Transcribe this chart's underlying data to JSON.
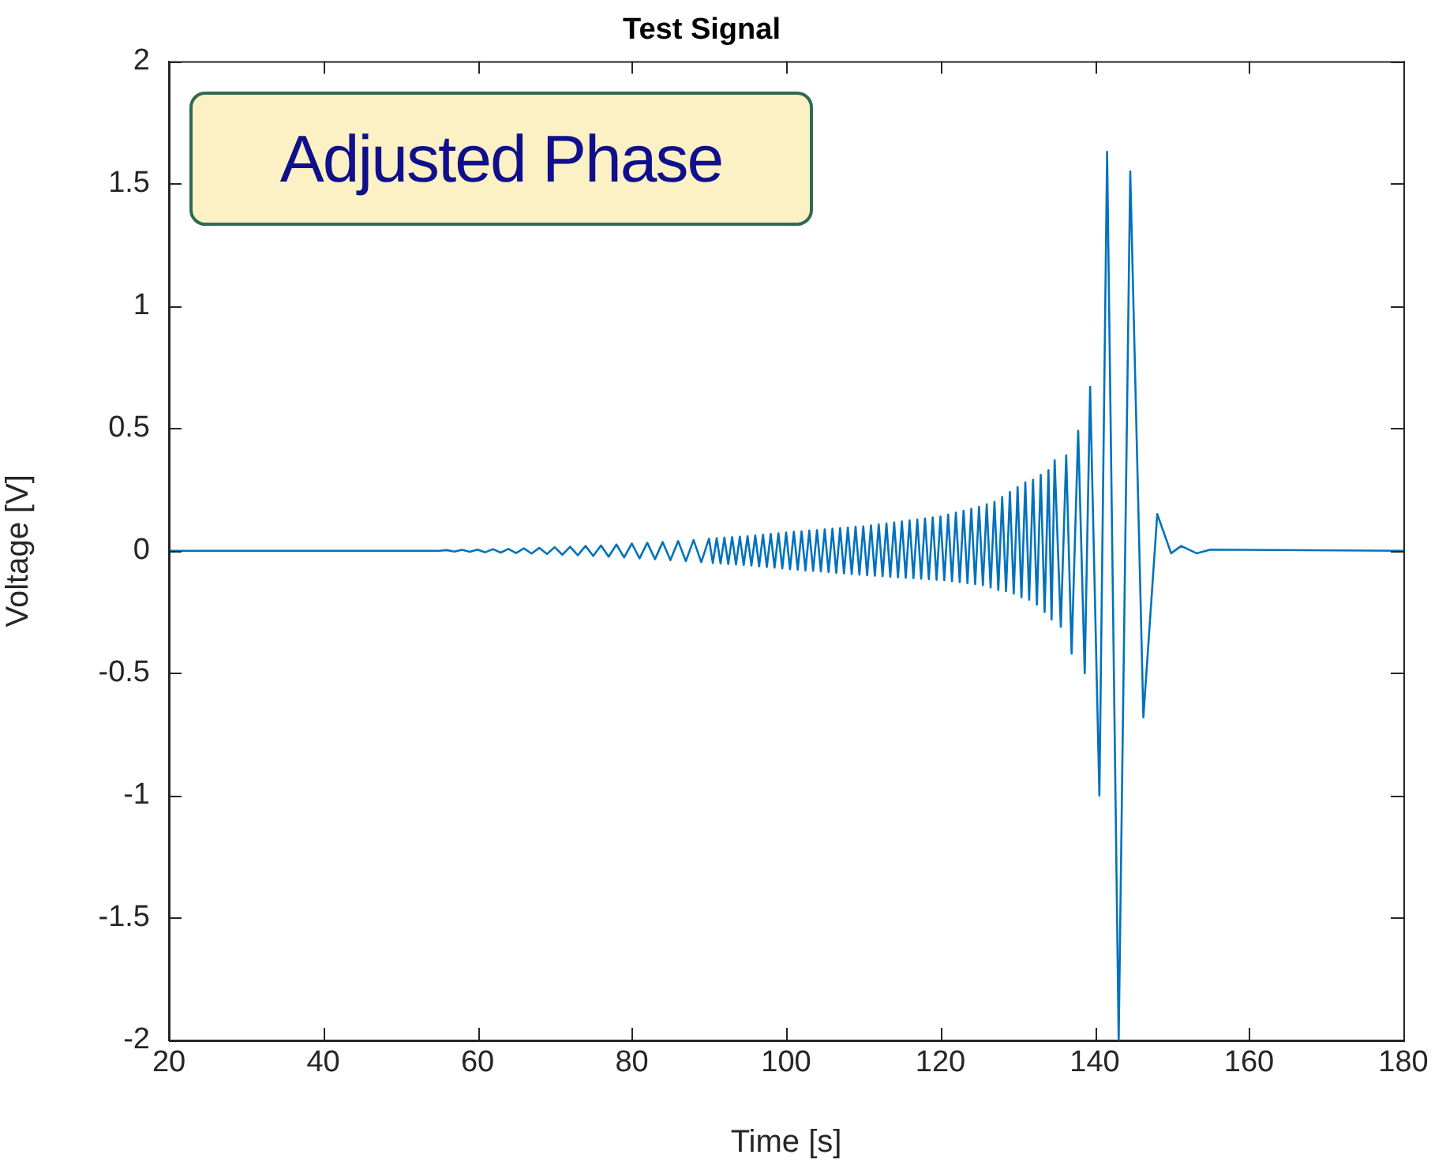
{
  "chart_data": {
    "type": "line",
    "title": "Test Signal",
    "xlabel": "Time [s]",
    "ylabel": "Voltage [V]",
    "annotations": [
      "Adjusted Phase"
    ],
    "xlim": [
      20,
      180
    ],
    "xticks": [
      20,
      40,
      60,
      80,
      100,
      120,
      140,
      160,
      180
    ],
    "ylim": [
      -2,
      2
    ],
    "yticks": [
      -2,
      -1.5,
      -1,
      -0.5,
      0,
      0.5,
      1,
      1.5,
      2
    ],
    "grid": false,
    "legend": false,
    "marker": "none",
    "line_style": "solid",
    "series": [
      {
        "color": "#0072bd",
        "x": [
          20,
          55,
          56,
          57,
          58,
          59,
          60,
          61,
          62,
          63,
          64,
          65,
          66,
          67,
          68,
          69,
          70,
          71,
          72,
          73,
          74,
          75,
          76,
          77,
          78,
          79,
          80,
          81,
          82,
          83,
          84,
          85,
          86,
          87,
          88,
          89,
          90,
          90.5,
          91,
          91.5,
          92,
          92.5,
          93,
          93.5,
          94,
          94.5,
          95,
          95.5,
          96,
          96.5,
          97,
          97.5,
          98,
          98.5,
          99,
          99.5,
          100,
          100.5,
          101,
          101.5,
          102,
          102.5,
          103,
          103.5,
          104,
          104.5,
          105,
          105.5,
          106,
          106.5,
          107,
          107.5,
          108,
          108.5,
          109,
          109.5,
          110,
          110.5,
          111,
          111.5,
          112,
          112.5,
          113,
          113.5,
          114,
          114.5,
          115,
          115.5,
          116,
          116.5,
          117,
          117.5,
          118,
          118.5,
          119,
          119.5,
          120,
          120.5,
          121,
          121.5,
          122,
          122.5,
          123,
          123.5,
          124,
          124.5,
          125,
          125.5,
          126,
          126.5,
          127,
          127.5,
          128,
          128.5,
          129,
          129.5,
          130,
          130.5,
          131,
          131.5,
          132,
          132.5,
          133,
          133.5,
          134,
          134.4,
          134.8,
          135.6,
          136.3,
          137,
          137.85,
          138.7,
          139.4,
          140.6,
          141.6,
          143.1,
          144.6,
          146.3,
          148.1,
          149.9,
          151.2,
          153.2,
          155,
          180
        ],
        "values": [
          0,
          0,
          0.003,
          -0.003,
          0.004,
          -0.004,
          0.005,
          -0.006,
          0.007,
          -0.007,
          0.008,
          -0.009,
          0.01,
          -0.011,
          0.012,
          -0.013,
          0.015,
          -0.016,
          0.017,
          -0.018,
          0.02,
          -0.021,
          0.022,
          -0.024,
          0.026,
          -0.027,
          0.03,
          -0.031,
          0.033,
          -0.034,
          0.036,
          -0.038,
          0.04,
          -0.042,
          0.044,
          -0.046,
          0.05,
          -0.05,
          0.052,
          -0.052,
          0.054,
          -0.054,
          0.056,
          -0.056,
          0.058,
          -0.058,
          0.06,
          -0.06,
          0.063,
          -0.063,
          0.066,
          -0.066,
          0.069,
          -0.069,
          0.072,
          -0.072,
          0.075,
          -0.075,
          0.078,
          -0.077,
          0.08,
          -0.08,
          0.083,
          -0.082,
          0.085,
          -0.084,
          0.088,
          -0.087,
          0.09,
          -0.09,
          0.093,
          -0.092,
          0.095,
          -0.095,
          0.098,
          -0.097,
          0.1,
          -0.1,
          0.104,
          -0.102,
          0.108,
          -0.104,
          0.112,
          -0.106,
          0.116,
          -0.108,
          0.12,
          -0.11,
          0.124,
          -0.112,
          0.128,
          -0.114,
          0.132,
          -0.116,
          0.136,
          -0.118,
          0.14,
          -0.12,
          0.148,
          -0.124,
          0.156,
          -0.128,
          0.164,
          -0.132,
          0.172,
          -0.136,
          0.18,
          -0.14,
          0.19,
          -0.15,
          0.2,
          -0.16,
          0.22,
          -0.165,
          0.24,
          -0.175,
          0.26,
          -0.19,
          0.28,
          -0.2,
          0.29,
          -0.22,
          0.31,
          -0.25,
          0.33,
          -0.28,
          0.37,
          -0.31,
          0.39,
          -0.42,
          0.49,
          -0.5,
          0.67,
          -1.0,
          1.63,
          -2,
          1.55,
          -0.68,
          0.15,
          -0.01,
          0.02,
          -0.01,
          0.005,
          0
        ]
      }
    ]
  }
}
